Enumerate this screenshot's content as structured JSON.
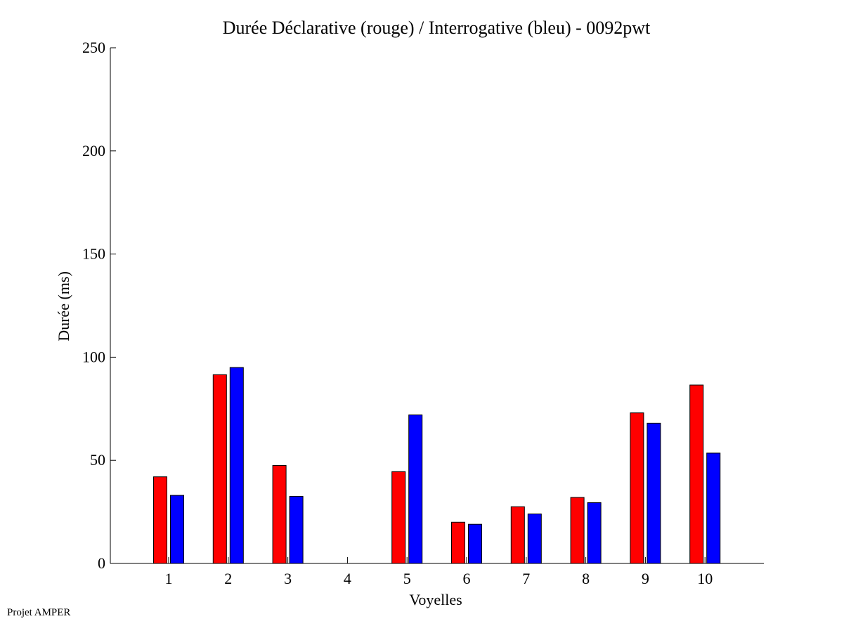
{
  "footer": "Projet AMPER",
  "chart_data": {
    "type": "bar",
    "title": "Durée Déclarative (rouge) / Interrogative (bleu) - 0092pwt",
    "xlabel": "Voyelles",
    "ylabel": "Durée (ms)",
    "categories": [
      "1",
      "2",
      "3",
      "4",
      "5",
      "6",
      "7",
      "8",
      "9",
      "10"
    ],
    "ylim": [
      0,
      250
    ],
    "yticks": [
      0,
      50,
      100,
      150,
      200,
      250
    ],
    "grid": false,
    "series": [
      {
        "color": "#ff0000",
        "values": [
          42,
          91.5,
          47.5,
          0,
          44.5,
          20,
          27.5,
          32,
          73,
          86.5
        ]
      },
      {
        "color": "#0000ff",
        "values": [
          33,
          95,
          32.5,
          0,
          72,
          19,
          24,
          29.5,
          68,
          53.5
        ]
      }
    ]
  }
}
